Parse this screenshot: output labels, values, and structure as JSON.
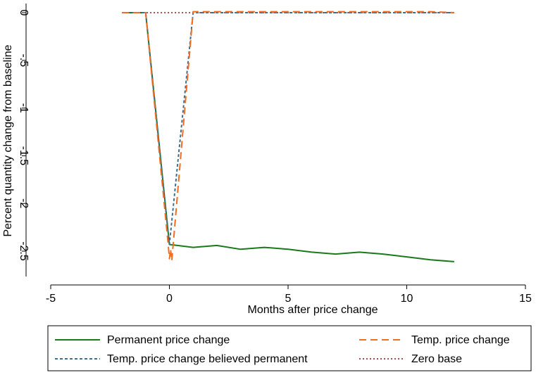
{
  "chart_data": {
    "type": "line",
    "xlabel": "Months after price change",
    "ylabel": "Percent quantity change from baseline",
    "xlim": [
      -5,
      15
    ],
    "ylim": [
      -2.75,
      0.05
    ],
    "xticks": [
      -5,
      0,
      5,
      10,
      15
    ],
    "xtick_labels": [
      "-5",
      "0",
      "5",
      "10",
      "15"
    ],
    "yticks": [
      0,
      -0.5,
      -1,
      -1.5,
      -2,
      -2.5
    ],
    "ytick_labels": [
      "0",
      "-.5",
      "-1",
      "-1.5",
      "-2",
      "-2.5"
    ],
    "grid": false,
    "legend_position": "bottom",
    "series": [
      {
        "name": "Permanent price change",
        "color": "#1a7a1a",
        "dash": "solid",
        "x": [
          -2,
          -1,
          0,
          1,
          2,
          3,
          4,
          5,
          6,
          7,
          8,
          9,
          10,
          11,
          12
        ],
        "y": [
          0,
          0,
          -2.43,
          -2.46,
          -2.44,
          -2.48,
          -2.46,
          -2.48,
          -2.51,
          -2.53,
          -2.51,
          -2.53,
          -2.56,
          -2.59,
          -2.61
        ]
      },
      {
        "name": "Temp. price change",
        "color": "#f26d21",
        "dash": "long",
        "x": [
          -2,
          -1,
          -0.05,
          0,
          0.05,
          0.1,
          1,
          2,
          3,
          4,
          5,
          6,
          7,
          8,
          9,
          10,
          11,
          12
        ],
        "y": [
          0,
          0,
          -2.43,
          -2.58,
          -2.48,
          -2.6,
          0.01,
          0.01,
          0.01,
          0.01,
          0.01,
          0.01,
          0.01,
          0.01,
          0.01,
          0.01,
          0.01,
          0.0
        ]
      },
      {
        "name": "Temp. price change believed permanent",
        "color": "#3f6f8f",
        "dash": "short",
        "x": [
          -2,
          -1,
          0,
          1,
          2,
          3,
          4,
          5,
          6,
          7,
          8,
          9,
          10,
          11,
          12
        ],
        "y": [
          0,
          0,
          -2.43,
          0,
          0,
          0,
          0,
          0,
          0,
          0,
          0,
          0,
          0,
          0,
          0
        ]
      },
      {
        "name": "Zero base",
        "color": "#a05050",
        "dash": "dot",
        "x": [
          -2,
          12
        ],
        "y": [
          0,
          0
        ]
      }
    ]
  }
}
